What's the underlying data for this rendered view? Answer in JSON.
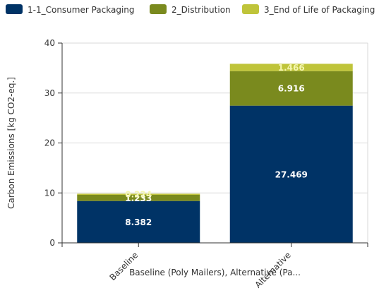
{
  "chart_data": {
    "type": "bar",
    "stacked": true,
    "categories": [
      "Baseline",
      "Alternative"
    ],
    "series": [
      {
        "name": "1-1_Consumer Packaging",
        "color": "#003366",
        "label_color": "#ffffff",
        "values": [
          8.382,
          27.469
        ]
      },
      {
        "name": "2_Distribution",
        "color": "#7a8a1e",
        "label_color": "#ffffff",
        "values": [
          1.233,
          6.916
        ]
      },
      {
        "name": "3_End of Life of Packaging",
        "color": "#bfc43a",
        "label_color": "#f4f6b0",
        "values": [
          0.224,
          1.466
        ]
      }
    ],
    "xlabel": "Baseline (Poly Mailers), Alternative (Pa...",
    "ylabel": "Carbon Emissions [kg CO2-eq.]",
    "ylim": [
      0,
      40
    ],
    "yticks": [
      0,
      10,
      20,
      30,
      40
    ],
    "grid": true,
    "legend_position": "top"
  }
}
